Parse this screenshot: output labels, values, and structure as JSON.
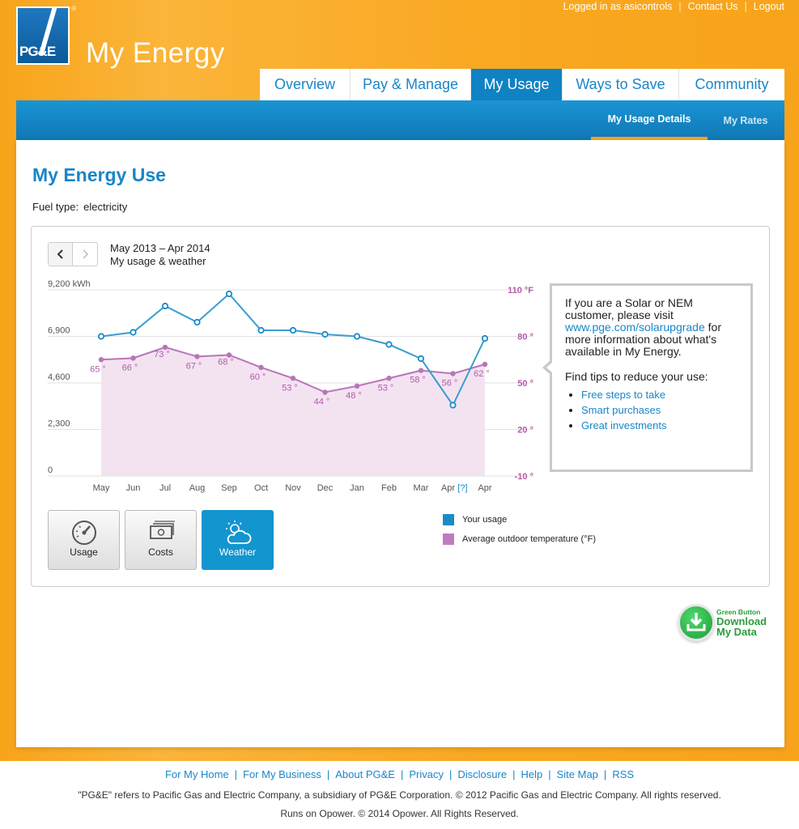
{
  "header": {
    "logged_in": "Logged in as asicontrols",
    "contact": "Contact Us",
    "logout": "Logout",
    "logo_text": "PG&E",
    "logo_reg": "®",
    "brand": "My Energy",
    "tabs": [
      "Overview",
      "Pay & Manage",
      "My Usage",
      "Ways to Save",
      "Community"
    ],
    "active_tab": "My Usage"
  },
  "subnav": {
    "items": [
      "My Usage Details",
      "My Rates"
    ],
    "active": "My Usage Details"
  },
  "main": {
    "title": "My Energy Use",
    "fuel_label": "Fuel type:",
    "fuel_value": "electricity",
    "range_title": "May 2013 – Apr 2014",
    "range_subtitle": "My usage & weather",
    "prev_icon": "chevron-left-icon",
    "next_icon": "chevron-right-icon"
  },
  "info_box": {
    "line1": "If you are a Solar or NEM customer, please visit",
    "link": "www.pge.com/solarupgrade",
    "line2": "for more information about what's available in My Energy.",
    "tips_title": "Find tips to reduce your use:",
    "tips": [
      "Free steps to take",
      "Smart purchases",
      "Great investments"
    ]
  },
  "mode_buttons": [
    {
      "label": "Usage",
      "icon": "gauge-icon"
    },
    {
      "label": "Costs",
      "icon": "money-icon"
    },
    {
      "label": "Weather",
      "icon": "cloud-sun-icon"
    }
  ],
  "active_mode": "Weather",
  "legend": {
    "usage": "Your usage",
    "temperature": "Average outdoor temperature (°F)"
  },
  "green_button": {
    "small": "Green Button",
    "line1": "Download",
    "line2": "My Data"
  },
  "footer": {
    "links": [
      "For My Home",
      "For My Business",
      "About PG&E",
      "Privacy",
      "Disclosure",
      "Help",
      "Site Map",
      "RSS"
    ],
    "copyright": "\"PG&E\" refers to Pacific Gas and Electric Company, a subsidiary of PG&E Corporation. © 2012 Pacific Gas and Electric Company. All rights reserved.",
    "opower": "Runs on Opower. © 2014 Opower. All Rights Reserved."
  },
  "colors": {
    "orange": "#f8a41a",
    "blue": "#1a86c7",
    "usage_line": "#3a9cd0",
    "temp_line": "#b974b9",
    "temp_area": "#f3e3f1"
  },
  "chart_data": {
    "type": "line",
    "categories": [
      "May",
      "Jun",
      "Jul",
      "Aug",
      "Sep",
      "Oct",
      "Nov",
      "Dec",
      "Jan",
      "Feb",
      "Mar",
      "Apr",
      "Apr"
    ],
    "estimate_marker": "[?]",
    "estimate_index": 11,
    "left_axis": {
      "ticks": [
        "9,200 kWh",
        "6,900",
        "4,600",
        "2,300",
        "0"
      ],
      "min": 0,
      "max": 9200
    },
    "right_axis": {
      "ticks": [
        "110 °F",
        "80 °",
        "50 °",
        "20 °",
        "-10 °"
      ],
      "min": -10,
      "max": 110
    },
    "series": [
      {
        "name": "Your usage",
        "values": [
          6900,
          7100,
          8400,
          7600,
          9000,
          7200,
          7200,
          7000,
          6900,
          6500,
          5800,
          3500,
          6800
        ]
      },
      {
        "name": "Average outdoor temperature (°F)",
        "values": [
          65,
          66,
          73,
          67,
          68,
          60,
          53,
          44,
          48,
          53,
          58,
          56,
          62
        ],
        "labels": [
          "65 °",
          "66 °",
          "73 °",
          "67 °",
          "68 °",
          "60 °",
          "53 °",
          "44 °",
          "48 °",
          "53 °",
          "58 °",
          "56 °",
          "62 °"
        ]
      }
    ]
  }
}
